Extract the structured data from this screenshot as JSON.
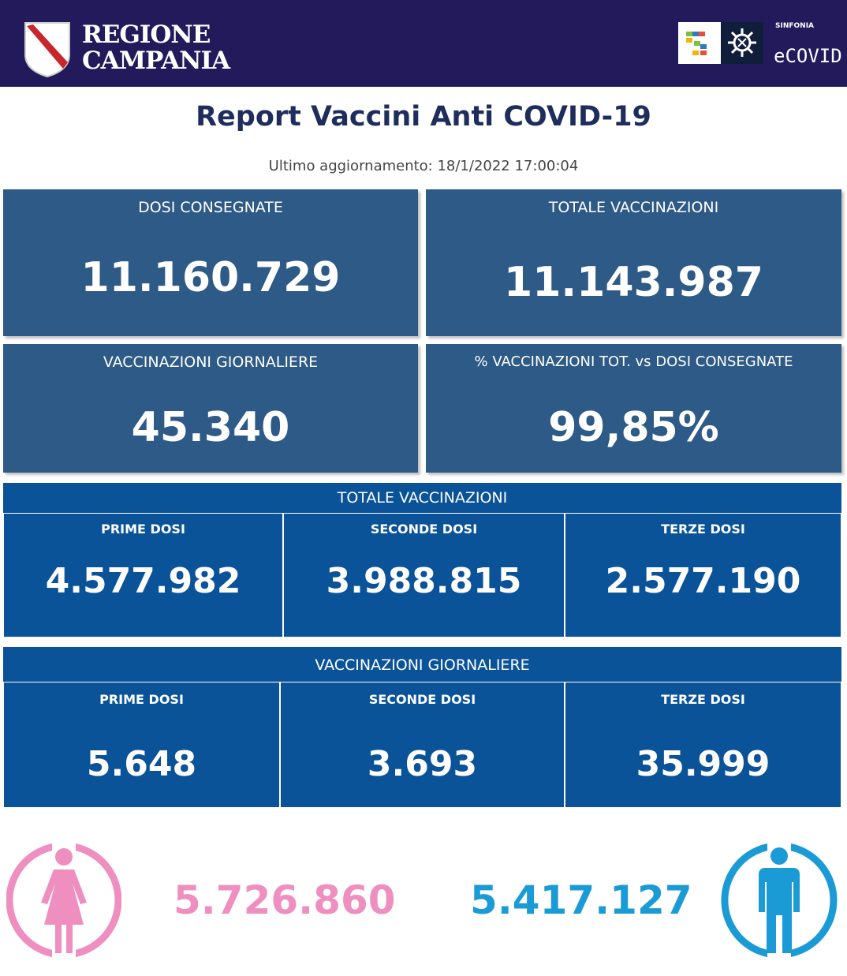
{
  "header": {
    "region_line1": "REGIONE",
    "region_line2": "CAMPANIA",
    "logo_small": "SINFONIA",
    "logo_main": "eCOVID"
  },
  "title": "Report Vaccini Anti COVID-19",
  "update_text": "Ultimo aggiornamento: 18/1/2022  17:00:04",
  "summary": {
    "dosi_consegnate": {
      "label": "DOSI  CONSEGNATE",
      "value": "11.160.729"
    },
    "totale_vaccinazioni": {
      "label": "TOTALE VACCINAZIONI",
      "value": "11.143.987"
    },
    "vaccinazioni_giornaliere": {
      "label": "VACCINAZIONI GIORNALIERE",
      "value": "45.340"
    },
    "percentuale": {
      "label": "% VACCINAZIONI TOT. vs DOSI CONSEGNATE",
      "value": "99,85%"
    }
  },
  "totale_panel": {
    "title": "TOTALE VACCINAZIONI",
    "items": [
      {
        "label": "PRIME DOSI",
        "value": "4.577.982"
      },
      {
        "label": "SECONDE DOSI",
        "value": "3.988.815"
      },
      {
        "label": "TERZE DOSI",
        "value": "2.577.190"
      }
    ]
  },
  "giornaliere_panel": {
    "title": "VACCINAZIONI GIORNALIERE",
    "items": [
      {
        "label": "PRIME DOSI",
        "value": "5.648"
      },
      {
        "label": "SECONDE DOSI",
        "value": "3.693"
      },
      {
        "label": "TERZE DOSI",
        "value": "35.999"
      }
    ]
  },
  "gender": {
    "female_value": "5.726.860",
    "male_value": "5.417.127",
    "female_color": "#ee8fc0",
    "male_color": "#1b9bd6",
    "female_icon": "female-person-icon",
    "male_icon": "male-person-icon"
  },
  "colors": {
    "header_bg": "#231a5c",
    "card_bg": "#2d5a86",
    "panel_bg": "#0b5399",
    "title_color": "#1f2d5c"
  }
}
